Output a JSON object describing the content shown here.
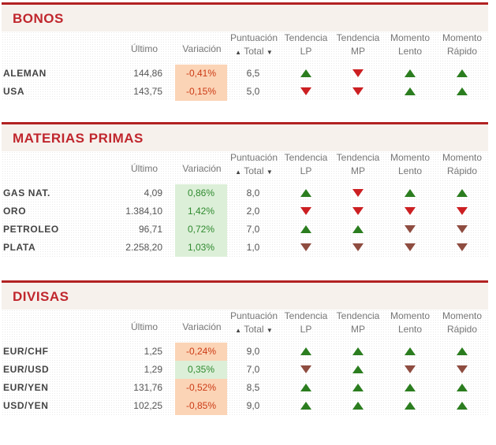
{
  "headers": {
    "last": "Último",
    "variation": "Variación",
    "score_line1": "Puntuación",
    "score_line2": "Total",
    "score_sort_up": "▲",
    "score_sort_down": "▼",
    "trend_lp_line1": "Tendencia",
    "trend_lp_line2": "LP",
    "trend_mp_line1": "Tendencia",
    "trend_mp_line2": "MP",
    "mom_slow_line1": "Momento",
    "mom_slow_line2": "Lento",
    "mom_fast_line1": "Momento",
    "mom_fast_line2": "Rápido"
  },
  "colors": {
    "section_bar": "#b22222",
    "title_text": "#c0262d",
    "negative_bg": "#fbd4b6",
    "positive_bg": "#dcefd8",
    "arrow_up": "#2b7d1f",
    "arrow_down": "#cc1f22",
    "arrow_down_muted": "#8e4c40"
  },
  "sections": [
    {
      "title": "BONOS",
      "rows": [
        {
          "name": "ALEMAN",
          "last": "144,86",
          "variation": "-0,41%",
          "variation_sign": "neg",
          "score": "6,5",
          "trend_lp": "up",
          "trend_mp": "down",
          "mom_slow": "up",
          "mom_fast": "up"
        },
        {
          "name": "USA",
          "last": "143,75",
          "variation": "-0,15%",
          "variation_sign": "neg",
          "score": "5,0",
          "trend_lp": "down",
          "trend_mp": "down",
          "mom_slow": "up",
          "mom_fast": "up"
        }
      ]
    },
    {
      "title": "MATERIAS PRIMAS",
      "rows": [
        {
          "name": "GAS NAT.",
          "last": "4,09",
          "variation": "0,86%",
          "variation_sign": "pos",
          "score": "8,0",
          "trend_lp": "up",
          "trend_mp": "down",
          "mom_slow": "up",
          "mom_fast": "up"
        },
        {
          "name": "ORO",
          "last": "1.384,10",
          "variation": "1,42%",
          "variation_sign": "pos",
          "score": "2,0",
          "trend_lp": "down",
          "trend_mp": "down",
          "mom_slow": "down",
          "mom_fast": "down"
        },
        {
          "name": "PETROLEO",
          "last": "96,71",
          "variation": "0,72%",
          "variation_sign": "pos",
          "score": "7,0",
          "trend_lp": "up",
          "trend_mp": "up",
          "mom_slow": "down-muted",
          "mom_fast": "down-muted"
        },
        {
          "name": "PLATA",
          "last": "2.258,20",
          "variation": "1,03%",
          "variation_sign": "pos",
          "score": "1,0",
          "trend_lp": "down-muted",
          "trend_mp": "down-muted",
          "mom_slow": "down-muted",
          "mom_fast": "down-muted"
        }
      ]
    },
    {
      "title": "DIVISAS",
      "rows": [
        {
          "name": "EUR/CHF",
          "last": "1,25",
          "variation": "-0,24%",
          "variation_sign": "neg",
          "score": "9,0",
          "trend_lp": "up",
          "trend_mp": "up",
          "mom_slow": "up",
          "mom_fast": "up"
        },
        {
          "name": "EUR/USD",
          "last": "1,29",
          "variation": "0,35%",
          "variation_sign": "pos",
          "score": "7,0",
          "trend_lp": "down-muted",
          "trend_mp": "up",
          "mom_slow": "down-muted",
          "mom_fast": "down-muted"
        },
        {
          "name": "EUR/YEN",
          "last": "131,76",
          "variation": "-0,52%",
          "variation_sign": "neg",
          "score": "8,5",
          "trend_lp": "up",
          "trend_mp": "up",
          "mom_slow": "up",
          "mom_fast": "up"
        },
        {
          "name": "USD/YEN",
          "last": "102,25",
          "variation": "-0,85%",
          "variation_sign": "neg",
          "score": "9,0",
          "trend_lp": "up",
          "trend_mp": "up",
          "mom_slow": "up",
          "mom_fast": "up"
        }
      ]
    }
  ]
}
